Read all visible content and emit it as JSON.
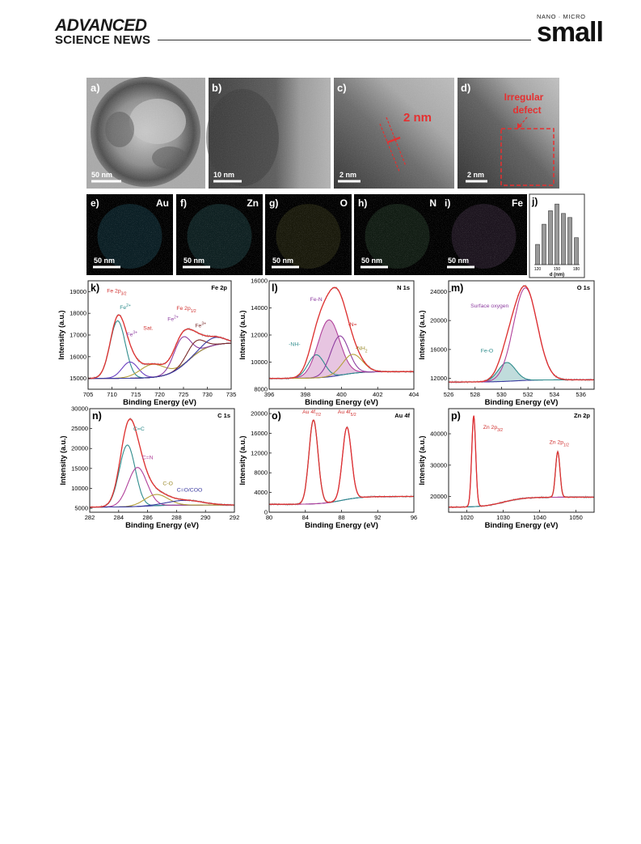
{
  "header": {
    "left_brand_line1": "ADVANCED",
    "left_brand_line2": "SCIENCE NEWS",
    "right_brand_small_caps": "NANO · MICRO",
    "right_brand_large": "small"
  },
  "tem": {
    "a": {
      "label": "a)",
      "scale": "50 nm"
    },
    "b": {
      "label": "b)",
      "scale": "10 nm"
    },
    "c": {
      "label": "c)",
      "scale": "2 nm",
      "annotation": "2 nm"
    },
    "d": {
      "label": "d)",
      "scale": "2 nm",
      "annotation_line1": "Irregular",
      "annotation_line2": "defect"
    }
  },
  "maps": [
    {
      "label": "e)",
      "element": "Au",
      "scale": "50 nm",
      "color": "#3aa9c9"
    },
    {
      "label": "f)",
      "element": "Zn",
      "scale": "50 nm",
      "color": "#4fb0b8"
    },
    {
      "label": "g)",
      "element": "O",
      "scale": "50 nm",
      "color": "#8a8a3c"
    },
    {
      "label": "h)",
      "element": "N",
      "scale": "50 nm",
      "color": "#5f9a6a"
    },
    {
      "label": "i)",
      "element": "Fe",
      "scale": "50 nm",
      "color": "#9c6fa6"
    }
  ],
  "chart_data": [
    {
      "panel": "j)",
      "type": "bar",
      "xlabel": "d (nm)",
      "categories": [
        120,
        130,
        140,
        150,
        160,
        170,
        180
      ],
      "values": [
        3,
        6,
        8,
        9,
        7.6,
        7,
        4
      ],
      "xticks": [
        "120",
        "150",
        "180"
      ]
    },
    {
      "panel": "k)",
      "type": "line",
      "title": "Fe 2p",
      "xlabel": "Binding Energy (eV)",
      "ylabel": "Intensity (a.u.)",
      "xlim": [
        705,
        735
      ],
      "ylim": [
        14500,
        19500
      ],
      "xticks": [
        705,
        710,
        715,
        720,
        725,
        730,
        735
      ],
      "yticks": [
        15000,
        16000,
        17000,
        18000,
        19000
      ],
      "annotations": [
        {
          "text": "Fe 2p",
          "sub": "3/2",
          "x": 711,
          "y": 18950,
          "color": "#d0302f"
        },
        {
          "text": "Fe",
          "sup": "2+",
          "x": 712.8,
          "y": 18200,
          "color": "#2f8c8c"
        },
        {
          "text": "Fe",
          "sup": "3+",
          "x": 714.2,
          "y": 16950,
          "color": "#8e3ea0"
        },
        {
          "text": "Sat.",
          "x": 717.6,
          "y": 17250,
          "color": "#d0302f"
        },
        {
          "text": "Fe 2p",
          "sub": "1/2",
          "x": 725.6,
          "y": 18150,
          "color": "#d0302f"
        },
        {
          "text": "Fe",
          "sup": "2+",
          "x": 722.8,
          "y": 17650,
          "color": "#8e3ea0"
        },
        {
          "text": "Fe",
          "sup": "3+",
          "x": 728.6,
          "y": 17350,
          "color": "#7a2a2a"
        }
      ],
      "background": {
        "start": 15000,
        "end": 16650,
        "mid": 726
      },
      "peaks": [
        {
          "center": 711.2,
          "height": 2650,
          "width": 1.6,
          "color": "#2f8c8c"
        },
        {
          "center": 713.8,
          "height": 750,
          "width": 1.7,
          "color": "#6a3fc0"
        },
        {
          "center": 718.5,
          "height": 600,
          "width": 2.6,
          "color": "#b5a03a"
        },
        {
          "center": 724.7,
          "height": 1300,
          "width": 1.8,
          "color": "#8e3ea0"
        },
        {
          "center": 727.5,
          "height": 600,
          "width": 1.8,
          "color": "#7a2a2a"
        },
        {
          "center": 731.5,
          "height": 350,
          "width": 2.2,
          "color": "#3b3ba0"
        }
      ],
      "envelope_color": "#e0302f",
      "raw_color": "#b8b8b8"
    },
    {
      "panel": "l)",
      "type": "line",
      "title": "N 1s",
      "xlabel": "Binding Energy (eV)",
      "ylabel": "Intensity (a.u.)",
      "xlim": [
        396,
        404
      ],
      "ylim": [
        8000,
        16000
      ],
      "xticks": [
        396,
        398,
        400,
        402,
        404
      ],
      "yticks": [
        8000,
        10000,
        12000,
        14000,
        16000
      ],
      "annotations": [
        {
          "text": "Fe-N",
          "x": 398.6,
          "y": 14500,
          "color": "#8e3ea0"
        },
        {
          "text": "-N=",
          "x": 400.6,
          "y": 12650,
          "color": "#d0302f"
        },
        {
          "text": "-NH-",
          "x": 397.4,
          "y": 11200,
          "color": "#2f8c8c"
        },
        {
          "text": "-NH",
          "sub": "2",
          "x": 401.1,
          "y": 10900,
          "color": "#9a8a2a"
        }
      ],
      "background": {
        "start": 8800,
        "end": 9300,
        "mid": 400
      },
      "filled_peak": 1,
      "peaks": [
        {
          "center": 398.6,
          "height": 1700,
          "width": 0.45,
          "color": "#2f8c8c"
        },
        {
          "center": 399.3,
          "height": 4200,
          "width": 0.6,
          "color": "#b0409a"
        },
        {
          "center": 399.9,
          "height": 2900,
          "width": 0.5,
          "color": "#8e3ea0"
        },
        {
          "center": 400.6,
          "height": 1400,
          "width": 0.55,
          "color": "#b5a03a"
        }
      ],
      "envelope_color": "#e0302f",
      "raw_color": "#b8b8b8"
    },
    {
      "panel": "m)",
      "type": "line",
      "title": "O 1s",
      "xlabel": "Binding Energy (eV)",
      "ylabel": "Intensity (a.u.)",
      "xlim": [
        526,
        537
      ],
      "ylim": [
        10500,
        25500
      ],
      "xticks": [
        526,
        528,
        530,
        532,
        534,
        536
      ],
      "yticks": [
        12000,
        16000,
        20000,
        24000
      ],
      "annotations": [
        {
          "text": "Surface oxygen",
          "x": 529.1,
          "y": 21800,
          "color": "#8e3ea0"
        },
        {
          "text": "Fe-O",
          "x": 528.9,
          "y": 15600,
          "color": "#2f8c8c"
        }
      ],
      "background": {
        "start": 11500,
        "end": 11800,
        "mid": 531
      },
      "filled_peak": 0,
      "peaks": [
        {
          "center": 530.4,
          "height": 2600,
          "width": 0.65,
          "color": "#2f8c8c"
        },
        {
          "center": 531.8,
          "height": 12800,
          "width": 0.9,
          "color": "#b0409a"
        }
      ],
      "envelope_color": "#e0302f",
      "raw_color": "#b8b8b8"
    },
    {
      "panel": "n)",
      "type": "line",
      "title": "C 1s",
      "xlabel": "Binding Energy (eV)",
      "ylabel": "Intensity (a.u.)",
      "xlim": [
        282,
        292
      ],
      "ylim": [
        4000,
        30000
      ],
      "xticks": [
        282,
        284,
        286,
        288,
        290,
        292
      ],
      "yticks": [
        5000,
        10000,
        15000,
        20000,
        25000,
        30000
      ],
      "annotations": [
        {
          "text": "C=C",
          "x": 285.4,
          "y": 24500,
          "color": "#2f8c8c"
        },
        {
          "text": "C=N",
          "x": 286.0,
          "y": 17300,
          "color": "#b0409a"
        },
        {
          "text": "C-O",
          "x": 287.4,
          "y": 10800,
          "color": "#9a8a2a"
        },
        {
          "text": "C=O/COO",
          "x": 288.9,
          "y": 9200,
          "color": "#3b3ba0"
        }
      ],
      "background": {
        "start": 5300,
        "end": 5800,
        "mid": 286
      },
      "peaks": [
        {
          "center": 284.6,
          "height": 15500,
          "width": 0.55,
          "color": "#2f8c8c"
        },
        {
          "center": 285.3,
          "height": 9800,
          "width": 0.65,
          "color": "#b0409a"
        },
        {
          "center": 286.6,
          "height": 2800,
          "width": 0.8,
          "color": "#b5a03a"
        },
        {
          "center": 288.6,
          "height": 1200,
          "width": 1.2,
          "color": "#3b3ba0"
        }
      ],
      "envelope_color": "#e0302f",
      "raw_color": "#b8b8b8"
    },
    {
      "panel": "o)",
      "type": "line",
      "title": "Au 4f",
      "xlabel": "Binding Energy (eV)",
      "ylabel": "Intensity (a.u.)",
      "xlim": [
        80,
        96
      ],
      "ylim": [
        0,
        21000
      ],
      "xticks": [
        80,
        84,
        88,
        92,
        96
      ],
      "yticks": [
        0,
        4000,
        8000,
        12000,
        16000,
        20000
      ],
      "annotations": [
        {
          "text": "Au 4f",
          "sub": "7/2",
          "x": 84.7,
          "y": 20000,
          "color": "#d0302f"
        },
        {
          "text": "Au 4f",
          "sub": "5/2",
          "x": 88.6,
          "y": 20000,
          "color": "#d0302f"
        }
      ],
      "background": {
        "start": 1600,
        "end": 3200,
        "mid": 88
      },
      "peaks": [
        {
          "center": 84.9,
          "height": 17000,
          "width": 0.5,
          "color": "#2f8c8c"
        },
        {
          "center": 88.6,
          "height": 14600,
          "width": 0.5,
          "color": "#b0409a"
        }
      ],
      "envelope_color": "#e0302f",
      "raw_color": "#b8b8b8"
    },
    {
      "panel": "p)",
      "type": "line",
      "title": "Zn 2p",
      "xlabel": "Binding Energy (eV)",
      "ylabel": "Intensity (a.u.)",
      "xlim": [
        1015,
        1055
      ],
      "ylim": [
        15000,
        48000
      ],
      "xticks": [
        1020,
        1030,
        1040,
        1050
      ],
      "yticks": [
        20000,
        30000,
        40000
      ],
      "annotations": [
        {
          "text": "Zn 2p",
          "sub": "3/2",
          "x": 1027.2,
          "y": 41500,
          "color": "#d0302f"
        },
        {
          "text": "Zn 2p",
          "sub": "1/2",
          "x": 1045.4,
          "y": 36800,
          "color": "#d0302f"
        }
      ],
      "background": {
        "start": 16600,
        "end": 19800,
        "mid": 1030
      },
      "peaks": [
        {
          "center": 1021.9,
          "height": 29000,
          "width": 0.55,
          "color": "#b0409a"
        },
        {
          "center": 1045.0,
          "height": 14500,
          "width": 0.6,
          "color": "#2f8c8c"
        }
      ],
      "envelope_color": "#e0302f",
      "raw_color": "#b8b8b8"
    }
  ]
}
